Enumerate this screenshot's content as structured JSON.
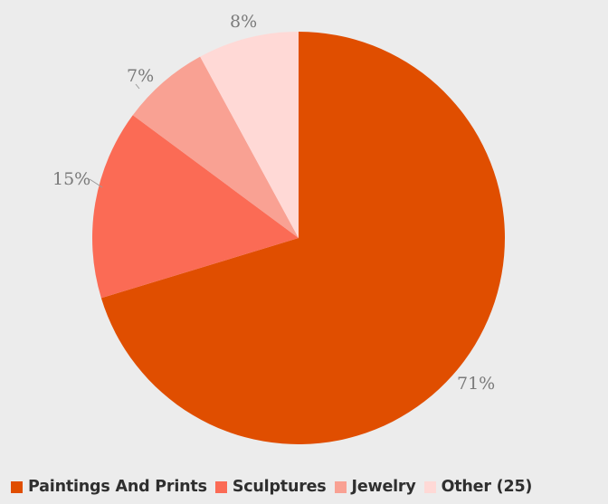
{
  "chart_data": {
    "type": "pie",
    "title": "",
    "slices": [
      {
        "name": "Paintings And Prints",
        "value": 71,
        "label": "71%",
        "color": "#e04e00"
      },
      {
        "name": "Sculptures",
        "value": 15,
        "label": "15%",
        "color": "#fb6b55"
      },
      {
        "name": "Jewelry",
        "value": 7,
        "label": "7%",
        "color": "#f9a193"
      },
      {
        "name": "Other (25)",
        "value": 8,
        "label": "8%",
        "color": "#ffd9d6"
      }
    ],
    "start_angle": "12 o'clock",
    "direction": "clockwise",
    "legend_position": "bottom"
  },
  "background": "#ececec"
}
